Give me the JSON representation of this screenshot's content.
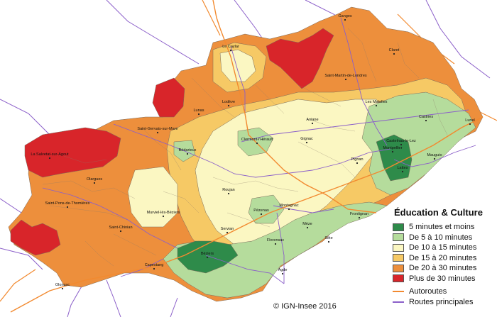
{
  "legend": {
    "title": "Éducation & Culture",
    "classes": [
      {
        "label": "5 minutes et moins",
        "color": "#2e8b4a"
      },
      {
        "label": "De 5 à 10 minutes",
        "color": "#b5dc9c"
      },
      {
        "label": "De 10 à 15 minutes",
        "color": "#fbf7c2"
      },
      {
        "label": "De 15 à 20 minutes",
        "color": "#f6c965"
      },
      {
        "label": "De 20 à 30 minutes",
        "color": "#ed8f3c"
      },
      {
        "label": "Plus de 30 minutes",
        "color": "#d8252a"
      }
    ],
    "routes": [
      {
        "label": "Autoroutes",
        "color": "#f28a30"
      },
      {
        "label": "Routes principales",
        "color": "#8b5fc9"
      }
    ]
  },
  "credit": "IGN-Insee 2016",
  "places": [
    {
      "name": "Ganges"
    },
    {
      "name": "Le Caylar"
    },
    {
      "name": "Claret"
    },
    {
      "name": "Saint-Martin-de-Londres"
    },
    {
      "name": "Les Matelles"
    },
    {
      "name": "Castries"
    },
    {
      "name": "Lunel"
    },
    {
      "name": "Lodève"
    },
    {
      "name": "Lunas"
    },
    {
      "name": "Aniane"
    },
    {
      "name": "Saint-Gervais-sur-Mare"
    },
    {
      "name": "Clermont-l'Hérault"
    },
    {
      "name": "Gignac"
    },
    {
      "name": "Castelnau-le-Lez"
    },
    {
      "name": "Montpellier"
    },
    {
      "name": "Mauguio"
    },
    {
      "name": "Lattes"
    },
    {
      "name": "La Salvetat-sur-Agout"
    },
    {
      "name": "Bédarieux"
    },
    {
      "name": "Olargues"
    },
    {
      "name": "Pignan"
    },
    {
      "name": "Saint-Pons-de-Thomières"
    },
    {
      "name": "Roujan"
    },
    {
      "name": "Montagnac"
    },
    {
      "name": "Pézenas"
    },
    {
      "name": "Frontignan"
    },
    {
      "name": "Murviel-lès-Béziers"
    },
    {
      "name": "Saint-Chinian"
    },
    {
      "name": "Servian"
    },
    {
      "name": "Mèze"
    },
    {
      "name": "Florensac"
    },
    {
      "name": "Sète"
    },
    {
      "name": "Béziers"
    },
    {
      "name": "Capestang"
    },
    {
      "name": "Agde"
    },
    {
      "name": "Olonzac"
    }
  ]
}
